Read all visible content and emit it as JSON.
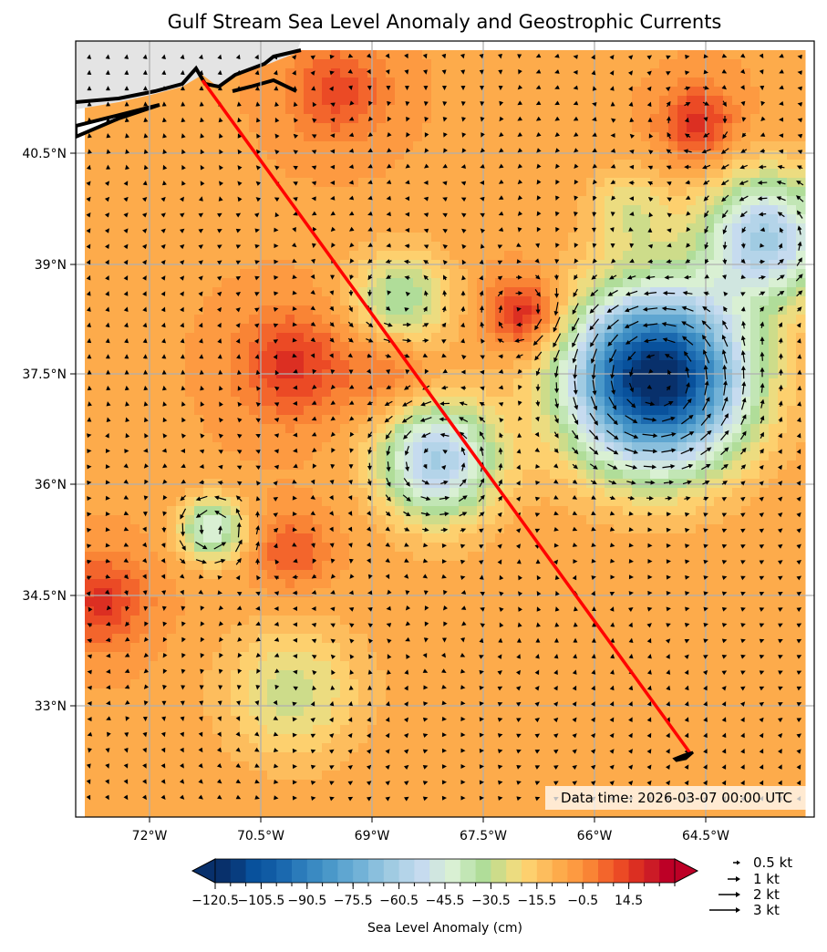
{
  "title": "Gulf Stream Sea Level Anomaly and Geostrophic Currents",
  "data_time": "Data time: 2026-03-07 00:00 UTC",
  "map": {
    "lon_range": [
      -73,
      -63
    ],
    "lat_range": [
      31.5,
      42
    ],
    "lon_ticks": [
      "72°W",
      "70.5°W",
      "69°W",
      "67.5°W",
      "66°W",
      "64.5°W"
    ],
    "lat_ticks": [
      "40.5°N",
      "39°N",
      "37.5°N",
      "36°N",
      "34.5°N",
      "33°N"
    ],
    "land_color": "#e4e4e4",
    "track_color": "#ff0000",
    "gridlines": true
  },
  "colorbar": {
    "label": "Sea Level Anomaly (cm)",
    "ticks": [
      "−120.5",
      "−105.5",
      "−90.5",
      "−75.5",
      "−60.5",
      "−45.5",
      "−30.5",
      "−15.5",
      "−0.5",
      "14.5"
    ],
    "range": [
      -120.5,
      29.5
    ],
    "step": 5,
    "colormap": "RdYlBu_r",
    "extend": "both"
  },
  "quiver_key": [
    "0.5 kt",
    "1 kt",
    "2 kt",
    "3 kt"
  ]
}
